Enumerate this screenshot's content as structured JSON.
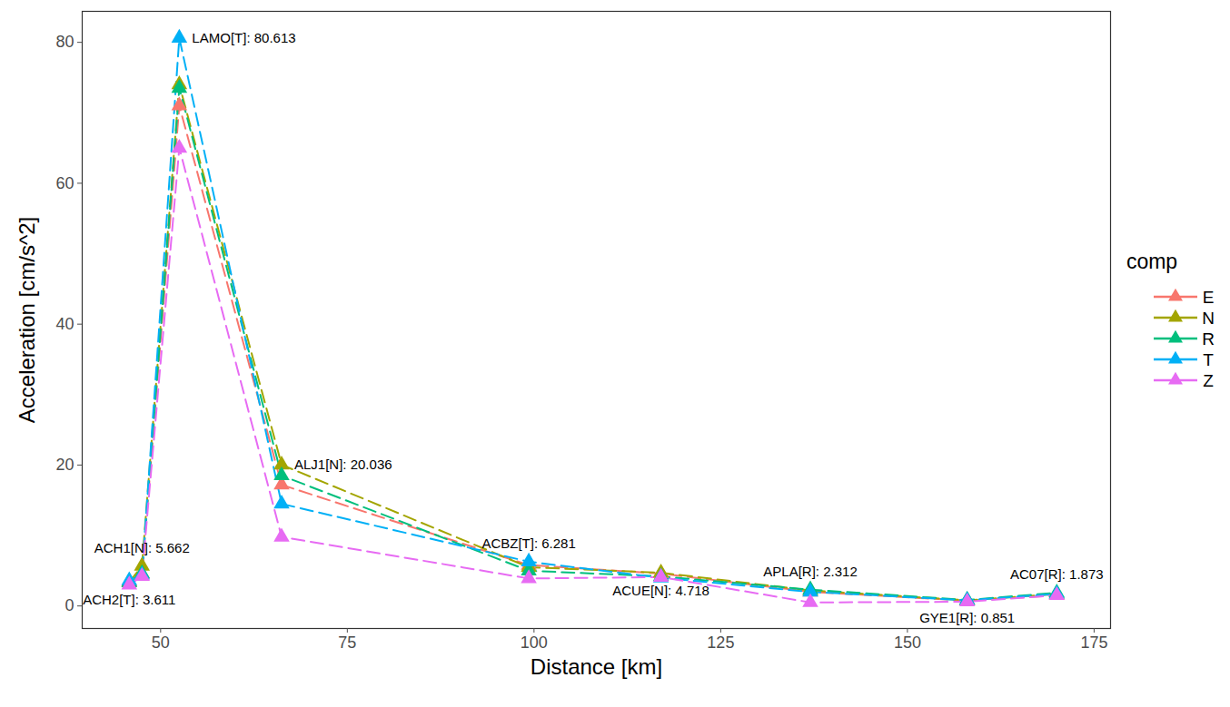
{
  "chart_data": {
    "type": "line",
    "x_label": "Distance [km]",
    "y_label": "Acceleration [cm/s^2]",
    "x": [
      45.8,
      47.5,
      52.5,
      66.2,
      99.3,
      117,
      137,
      158,
      170
    ],
    "series": [
      {
        "name": "E",
        "color": "#F8766D",
        "values": [
          3.5,
          4.5,
          71,
          17.2,
          5.8,
          4.6,
          2.0,
          0.75,
          1.5
        ]
      },
      {
        "name": "N",
        "color": "#A3A500",
        "values": [
          3.4,
          5.662,
          74,
          20.036,
          5.5,
          4.718,
          2.2,
          0.8,
          1.7
        ]
      },
      {
        "name": "R",
        "color": "#00BF7D",
        "values": [
          3.3,
          4.6,
          73.5,
          18.5,
          5.0,
          4.2,
          2.312,
          0.851,
          1.873
        ]
      },
      {
        "name": "T",
        "color": "#00B0F6",
        "values": [
          3.611,
          4.4,
          80.613,
          14.5,
          6.281,
          4.0,
          2.0,
          0.8,
          1.7
        ]
      },
      {
        "name": "Z",
        "color": "#E76BF3",
        "values": [
          3.0,
          4.2,
          65,
          9.8,
          3.9,
          4.1,
          0.5,
          0.6,
          1.5
        ]
      }
    ],
    "annotations": [
      {
        "x": 45.8,
        "y": 3.611,
        "text": "ACH2[T]: 3.611"
      },
      {
        "x": 47.5,
        "y": 5.662,
        "text": "ACH1[N]: 5.662"
      },
      {
        "x": 52.5,
        "y": 80.613,
        "text": "LAMO[T]: 80.613"
      },
      {
        "x": 66.2,
        "y": 20.036,
        "text": "ALJ1[N]: 20.036"
      },
      {
        "x": 99.3,
        "y": 6.281,
        "text": "ACBZ[T]: 6.281"
      },
      {
        "x": 117,
        "y": 4.718,
        "text": "ACUE[N]: 4.718"
      },
      {
        "x": 137,
        "y": 2.312,
        "text": "APLA[R]: 2.312"
      },
      {
        "x": 158,
        "y": 0.851,
        "text": "GYE1[R]: 0.851"
      },
      {
        "x": 170,
        "y": 1.873,
        "text": "AC07[R]: 1.873"
      }
    ],
    "legend_title": "comp",
    "legend": "right",
    "marker": "triangle",
    "line_style": "dashed",
    "grid": false,
    "xlim": [
      39.5,
      177.2
    ],
    "xticks": [
      50,
      75,
      100,
      125,
      150,
      175
    ],
    "ylim": [
      -3.2,
      84.4
    ],
    "yticks": [
      0,
      20,
      40,
      60,
      80
    ]
  }
}
